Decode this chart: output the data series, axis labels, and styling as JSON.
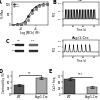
{
  "panel_a": {
    "ctrl_x": [
      -9,
      -8.5,
      -8,
      -7.5,
      -7,
      -6.5,
      -6,
      -5.5,
      -5,
      -4.5
    ],
    "ctrl_y": [
      0,
      2,
      5,
      15,
      40,
      70,
      88,
      95,
      98,
      100
    ],
    "cko_x": [
      -9,
      -8.5,
      -8,
      -7.5,
      -7,
      -6.5,
      -6,
      -5.5,
      -5,
      -4.5
    ],
    "cko_y": [
      0,
      1,
      3,
      8,
      25,
      55,
      78,
      90,
      96,
      100
    ],
    "xlabel": "Log [MCh] (M)",
    "ylabel": "% Max",
    "ctrl_color": "#222222",
    "cko_color": "#888888",
    "ctrl_marker": "o",
    "cko_marker": "s",
    "ylim": [
      0,
      110
    ],
    "xlim": [
      -9.2,
      -4.3
    ],
    "legend_labels": [
      "ctrl",
      "cKO"
    ]
  },
  "panel_b_top": {
    "title": "WT",
    "xlabel": "Time (s)",
    "ylabel": "F/F0",
    "n_peaks": 20,
    "baseline": 1.0,
    "peak_height": 0.25,
    "color": "#111111",
    "xlim": [
      0,
      70
    ],
    "ylim": [
      0.85,
      1.45
    ]
  },
  "panel_b_bottom": {
    "title": "Asgr1-Cre",
    "xlabel": "Time (s)",
    "ylabel": "F/F0",
    "n_peaks": 7,
    "baseline": 1.0,
    "peak_height": 0.28,
    "color": "#111111",
    "xlim": [
      0,
      70
    ],
    "ylim": [
      0.85,
      1.45
    ]
  },
  "panel_d": {
    "categories": [
      "WT",
      "Asgr1-Cre"
    ],
    "values": [
      38,
      68
    ],
    "colors": [
      "#555555",
      "#aaaaaa"
    ],
    "ylabel": "Contractility (%)",
    "sig_label": "**",
    "ylim": [
      0,
      95
    ],
    "error": [
      4,
      5
    ]
  },
  "panel_e": {
    "categories": [
      "WT",
      "Asgr1-Cre"
    ],
    "values": [
      62,
      30
    ],
    "colors": [
      "#555555",
      "#aaaaaa"
    ],
    "ylabel": "Ca2+ freq.",
    "sig_label": "***",
    "ylim": [
      0,
      95
    ],
    "error": [
      5,
      4
    ]
  },
  "background": "#ffffff"
}
